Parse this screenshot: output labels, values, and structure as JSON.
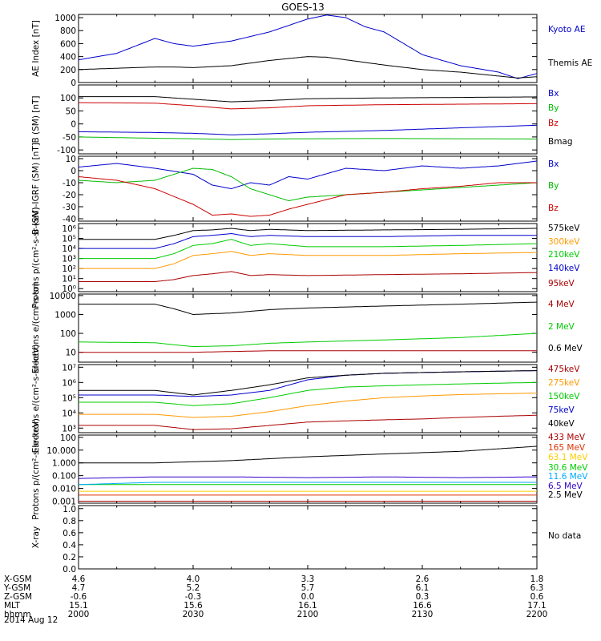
{
  "title": "GOES-13",
  "date_label": "2014 Aug 12",
  "footer": {
    "rows": [
      {
        "label": "X-GSM",
        "values": [
          "4.6",
          "4.0",
          "3.3",
          "2.6",
          "1.8"
        ]
      },
      {
        "label": "Y-GSM",
        "values": [
          "4.7",
          "5.2",
          "5.7",
          "6.1",
          "6.3"
        ]
      },
      {
        "label": "Z-GSM",
        "values": [
          "-0.6",
          "-0.3",
          "0.0",
          "0.3",
          "0.6"
        ]
      },
      {
        "label": "MLT",
        "values": [
          "15.1",
          "15.6",
          "16.1",
          "16.6",
          "17.1"
        ]
      },
      {
        "label": "hhmm",
        "values": [
          "2000",
          "2030",
          "2100",
          "2130",
          "2200"
        ]
      }
    ]
  },
  "chart_data": [
    {
      "type": "line",
      "ylabel": "AE Index [nT]",
      "ylim": [
        0,
        1050
      ],
      "yticks": [
        "0",
        "200",
        "400",
        "600",
        "800",
        "1000"
      ],
      "ytick_values": [
        0,
        200,
        400,
        600,
        800,
        1000
      ],
      "x": [
        0,
        10,
        20,
        25,
        30,
        40,
        50,
        60,
        65,
        70,
        75,
        80,
        90,
        100,
        110,
        115,
        120
      ],
      "series": [
        {
          "name": "Kyoto AE",
          "color": "#0000cc",
          "values": [
            350,
            450,
            680,
            600,
            560,
            640,
            780,
            980,
            1040,
            1000,
            860,
            780,
            430,
            260,
            160,
            60,
            140
          ]
        },
        {
          "name": "Themis AE",
          "color": "#000000",
          "values": [
            200,
            220,
            240,
            240,
            230,
            260,
            340,
            400,
            390,
            350,
            310,
            270,
            200,
            160,
            100,
            70,
            90
          ]
        }
      ]
    },
    {
      "type": "line",
      "ylabel": "B (SM) [nT]",
      "ylim": [
        -115,
        150
      ],
      "yticks": [
        "-100",
        "-50",
        "0",
        "50",
        "100"
      ],
      "ytick_values": [
        -100,
        -50,
        0,
        50,
        100
      ],
      "x": [
        0,
        20,
        30,
        40,
        50,
        60,
        80,
        100,
        120
      ],
      "series": [
        {
          "name": "Bx",
          "color": "#0000cc",
          "values": [
            -30,
            -33,
            -36,
            -42,
            -38,
            -32,
            -25,
            -15,
            -5
          ]
        },
        {
          "name": "By",
          "color": "#00bb00",
          "values": [
            -50,
            -55,
            -57,
            -60,
            -58,
            -57,
            -56,
            -57,
            -58
          ]
        },
        {
          "name": "Bz",
          "color": "#cc0000",
          "values": [
            82,
            80,
            70,
            58,
            62,
            70,
            74,
            76,
            78
          ]
        },
        {
          "name": "Bmag",
          "color": "#000000",
          "values": [
            105,
            105,
            95,
            85,
            90,
            97,
            100,
            102,
            104
          ]
        }
      ]
    },
    {
      "type": "line",
      "ylabel": "B (SM)-IGRF (SM) [nT]",
      "ylim": [
        -42,
        12
      ],
      "yticks": [
        "-40",
        "-30",
        "-20",
        "-10",
        "0",
        "10"
      ],
      "ytick_values": [
        -40,
        -30,
        -20,
        -10,
        0,
        10
      ],
      "x": [
        0,
        10,
        20,
        30,
        35,
        40,
        45,
        50,
        55,
        60,
        70,
        80,
        90,
        100,
        110,
        120
      ],
      "series": [
        {
          "name": "Bx",
          "color": "#0000cc",
          "values": [
            3,
            6,
            2,
            -3,
            -12,
            -15,
            -10,
            -12,
            -5,
            -7,
            2,
            0,
            4,
            2,
            4,
            8
          ]
        },
        {
          "name": "By",
          "color": "#00bb00",
          "values": [
            -8,
            -10,
            -8,
            2,
            1,
            -5,
            -15,
            -20,
            -25,
            -22,
            -20,
            -18,
            -16,
            -14,
            -12,
            -10
          ]
        },
        {
          "name": "Bz",
          "color": "#cc0000",
          "values": [
            -5,
            -8,
            -15,
            -28,
            -37,
            -36,
            -38,
            -37,
            -32,
            -28,
            -20,
            -18,
            -15,
            -13,
            -10,
            -10
          ]
        }
      ]
    },
    {
      "type": "line",
      "ylabel": "Protons p/(cm²-s-sr-keV)",
      "scale": "log",
      "ylim": [
        0.5,
        3000000
      ],
      "yticks": [
        "10⁰",
        "10¹",
        "10²",
        "10³",
        "10⁴",
        "10⁵",
        "10⁶"
      ],
      "ytick_values": [
        1,
        10,
        100,
        1000,
        10000,
        100000,
        1000000
      ],
      "x": [
        0,
        20,
        25,
        30,
        35,
        40,
        45,
        50,
        60,
        80,
        100,
        120
      ],
      "series": [
        {
          "name": "575keV",
          "color": "#000000",
          "values": [
            80000,
            80000,
            200000,
            600000,
            700000,
            1000000,
            600000,
            800000,
            600000,
            700000,
            800000,
            1000000
          ]
        },
        {
          "name": "300keV",
          "color": "#ff9900",
          "values": [
            100,
            100,
            300,
            2000,
            3000,
            5000,
            2000,
            3000,
            2000,
            2000,
            3000,
            4000
          ]
        },
        {
          "name": "210keV",
          "color": "#00cc00",
          "values": [
            1000,
            1000,
            3000,
            20000,
            30000,
            80000,
            20000,
            30000,
            15000,
            15000,
            20000,
            30000
          ]
        },
        {
          "name": "140keV",
          "color": "#0000cc",
          "values": [
            10000,
            10000,
            30000,
            150000,
            200000,
            300000,
            150000,
            200000,
            150000,
            150000,
            200000,
            200000
          ]
        },
        {
          "name": "95keV",
          "color": "#aa0000",
          "values": [
            5,
            5,
            8,
            20,
            30,
            50,
            20,
            25,
            20,
            25,
            30,
            40
          ]
        }
      ]
    },
    {
      "type": "line",
      "ylabel": "Electrons e/(cm²-s-sr)",
      "scale": "log",
      "ylim": [
        3,
        12000
      ],
      "yticks": [
        "10",
        "100",
        "1000",
        "10000"
      ],
      "ytick_values": [
        10,
        100,
        1000,
        10000
      ],
      "x": [
        0,
        20,
        25,
        30,
        40,
        50,
        60,
        80,
        100,
        120
      ],
      "series": [
        {
          "name": "4 MeV",
          "color": "#aa0000",
          "values": [
            10,
            10,
            10,
            10,
            11,
            12,
            12,
            12,
            12,
            12
          ]
        },
        {
          "name": "2 MeV",
          "color": "#00cc00",
          "values": [
            35,
            32,
            25,
            20,
            22,
            30,
            35,
            45,
            60,
            100
          ]
        },
        {
          "name": "0.6 MeV",
          "color": "#000000",
          "values": [
            3500,
            3500,
            2000,
            1000,
            1200,
            1800,
            2200,
            2800,
            3500,
            4500
          ]
        }
      ]
    },
    {
      "type": "line",
      "ylabel": "Electrons e/(cm²-s-sr-keV)",
      "scale": "log",
      "ylim": [
        500,
        15000000
      ],
      "yticks": [
        "10³",
        "10⁴",
        "10⁵",
        "10⁶",
        "10⁷"
      ],
      "ytick_values": [
        1000,
        10000,
        100000,
        1000000,
        10000000
      ],
      "x": [
        0,
        20,
        30,
        40,
        50,
        60,
        70,
        80,
        90,
        100,
        110,
        120
      ],
      "series": [
        {
          "name": "475keV",
          "color": "#aa0000",
          "values": [
            1500,
            1500,
            800,
            900,
            1500,
            2500,
            3000,
            3500,
            4000,
            5000,
            6000,
            7000
          ]
        },
        {
          "name": "275keV",
          "color": "#ff9900",
          "values": [
            8000,
            8000,
            5000,
            6000,
            12000,
            30000,
            60000,
            100000,
            130000,
            160000,
            180000,
            200000
          ]
        },
        {
          "name": "150keV",
          "color": "#00cc00",
          "values": [
            50000,
            50000,
            30000,
            40000,
            100000,
            300000,
            500000,
            600000,
            700000,
            800000,
            900000,
            1000000
          ]
        },
        {
          "name": "75keV",
          "color": "#0000cc",
          "values": [
            150000,
            150000,
            120000,
            150000,
            300000,
            1500000,
            3000000,
            4000000,
            4500000,
            5000000,
            5500000,
            6000000
          ]
        },
        {
          "name": "40keV",
          "color": "#000000",
          "values": [
            300000,
            300000,
            150000,
            300000,
            700000,
            2000000,
            3000000,
            4000000,
            4500000,
            5000000,
            5500000,
            6000000
          ]
        }
      ]
    },
    {
      "type": "line",
      "ylabel": "Protons p/(cm²-s-sr-keV)",
      "scale": "log",
      "ylim": [
        0.0007,
        150
      ],
      "yticks": [
        "0.001",
        "0.010",
        "0.100",
        "1.000",
        "10.000",
        "100"
      ],
      "ytick_values": [
        0.001,
        0.01,
        0.1,
        1,
        10,
        100
      ],
      "x": [
        0,
        20,
        40,
        60,
        80,
        100,
        120
      ],
      "series": [
        {
          "name": "433 MeV",
          "color": "#aa0000",
          "values": [
            0.001,
            0.001,
            0.001,
            0.001,
            0.001,
            0.001,
            0.001
          ]
        },
        {
          "name": "165 MeV",
          "color": "#dd3300",
          "values": [
            0.003,
            0.003,
            0.003,
            0.003,
            0.003,
            0.003,
            0.003
          ]
        },
        {
          "name": "63.1 MeV",
          "color": "#ffcc00",
          "values": [
            0.006,
            0.006,
            0.006,
            0.006,
            0.006,
            0.006,
            0.006
          ]
        },
        {
          "name": "30.6 MeV",
          "color": "#00cc00",
          "values": [
            0.02,
            0.02,
            0.02,
            0.02,
            0.02,
            0.02,
            0.02
          ]
        },
        {
          "name": "11.6 MeV",
          "color": "#00aaff",
          "values": [
            0.02,
            0.03,
            0.03,
            0.03,
            0.03,
            0.03,
            0.03
          ]
        },
        {
          "name": "6.5 MeV",
          "color": "#3300cc",
          "values": [
            0.06,
            0.08,
            0.08,
            0.07,
            0.08,
            0.07,
            0.08
          ]
        },
        {
          "name": "2.5 MeV",
          "color": "#000000",
          "values": [
            1,
            1,
            1.5,
            3,
            5,
            8,
            20
          ]
        }
      ]
    },
    {
      "type": "line",
      "ylabel": "X-ray",
      "ylim": [
        0,
        1.05
      ],
      "yticks": [
        "0.0",
        "0.2",
        "0.4",
        "0.6",
        "0.8",
        "1.0"
      ],
      "ytick_values": [
        0,
        0.2,
        0.4,
        0.6,
        0.8,
        1.0
      ],
      "note": "No data",
      "series": []
    }
  ]
}
